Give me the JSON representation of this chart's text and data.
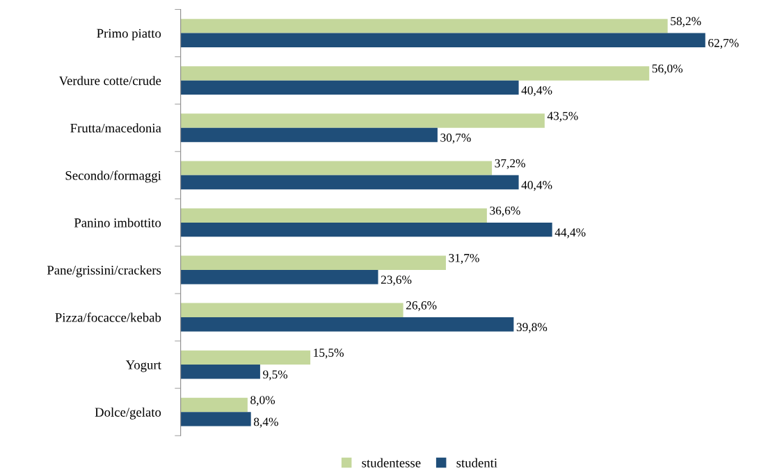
{
  "chart_data": {
    "type": "bar",
    "orientation": "horizontal",
    "categories": [
      "Primo piatto",
      "Verdure cotte/crude",
      "Frutta/macedonia",
      "Secondo/formaggi",
      "Panino imbottito",
      "Pane/grissini/crackers",
      "Pizza/focacce/kebab",
      "Yogurt",
      "Dolce/gelato"
    ],
    "series": [
      {
        "name": "studentesse",
        "color": "#c4d79b",
        "values": [
          58.2,
          56.0,
          43.5,
          37.2,
          36.6,
          31.7,
          26.6,
          15.5,
          8.0
        ],
        "value_labels": [
          "58,2%",
          "56,0%",
          "43,5%",
          "37,2%",
          "36,6%",
          "31,7%",
          "26,6%",
          "15,5%",
          "8,0%"
        ]
      },
      {
        "name": "studenti",
        "color": "#1f4e79",
        "values": [
          62.7,
          40.4,
          30.7,
          40.4,
          44.4,
          23.6,
          39.8,
          9.5,
          8.4
        ],
        "value_labels": [
          "62,7%",
          "40,4%",
          "30,7%",
          "40,4%",
          "44,4%",
          "23,6%",
          "39,8%",
          "9,5%",
          "8,4%"
        ]
      }
    ],
    "tick_labels": "y",
    "legend": "bottom",
    "grid": false
  }
}
